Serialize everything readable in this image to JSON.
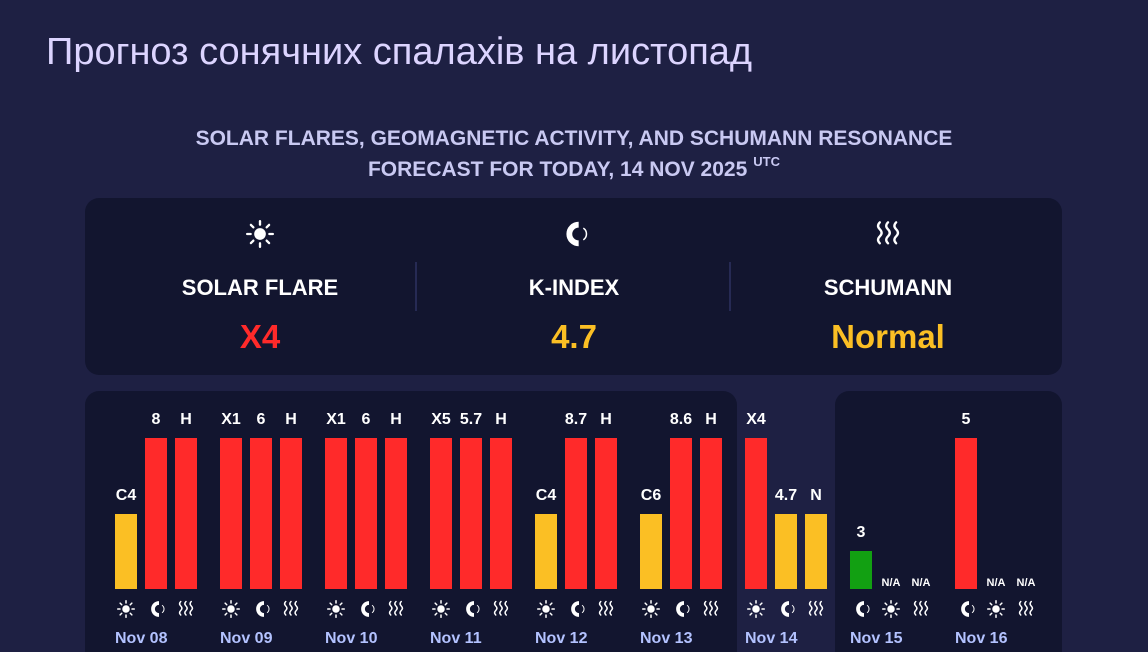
{
  "header": {
    "title": "Прогноз сонячних спалахів на листопад"
  },
  "forecast": {
    "heading": "SOLAR FLARES, GEOMAGNETIC ACTIVITY, AND SCHUMANN RESONANCE",
    "heading_line2": "FORECAST FOR TODAY, 14 NOV 2025",
    "heading_sup": "UTC",
    "items": [
      {
        "icon": "sun",
        "label": "SOLAR FLARE",
        "value": "X4",
        "color": "#ff2a2a"
      },
      {
        "icon": "magnet",
        "label": "K-INDEX",
        "value": "4.7",
        "color": "#fbbf24"
      },
      {
        "icon": "waves",
        "label": "SCHUMANN",
        "value": "Normal",
        "color": "#fbbf24"
      }
    ]
  },
  "days": [
    {
      "date": "Nov 08",
      "bars": [
        {
          "label": "C4",
          "color": "#fbbf24",
          "icon": "sun"
        },
        {
          "label": "8",
          "color": "#ff2a2a",
          "icon": "magnet"
        },
        {
          "label": "H",
          "color": "#ff2a2a",
          "icon": "waves"
        }
      ]
    },
    {
      "date": "Nov 09",
      "bars": [
        {
          "label": "X1",
          "color": "#ff2a2a",
          "icon": "sun"
        },
        {
          "label": "6",
          "color": "#ff2a2a",
          "icon": "magnet"
        },
        {
          "label": "H",
          "color": "#ff2a2a",
          "icon": "waves"
        }
      ]
    },
    {
      "date": "Nov 10",
      "bars": [
        {
          "label": "X1",
          "color": "#ff2a2a",
          "icon": "sun"
        },
        {
          "label": "6",
          "color": "#ff2a2a",
          "icon": "magnet"
        },
        {
          "label": "H",
          "color": "#ff2a2a",
          "icon": "waves"
        }
      ]
    },
    {
      "date": "Nov 11",
      "bars": [
        {
          "label": "X5",
          "color": "#ff2a2a",
          "icon": "sun"
        },
        {
          "label": "5.7",
          "color": "#ff2a2a",
          "icon": "magnet"
        },
        {
          "label": "H",
          "color": "#ff2a2a",
          "icon": "waves"
        }
      ]
    },
    {
      "date": "Nov 12",
      "bars": [
        {
          "label": "C4",
          "color": "#fbbf24",
          "icon": "sun"
        },
        {
          "label": "8.7",
          "color": "#ff2a2a",
          "icon": "magnet"
        },
        {
          "label": "H",
          "color": "#ff2a2a",
          "icon": "waves"
        }
      ]
    },
    {
      "date": "Nov 13",
      "bars": [
        {
          "label": "C6",
          "color": "#fbbf24",
          "icon": "sun"
        },
        {
          "label": "8.6",
          "color": "#ff2a2a",
          "icon": "magnet"
        },
        {
          "label": "H",
          "color": "#ff2a2a",
          "icon": "waves"
        }
      ]
    },
    {
      "date": "Nov 14",
      "highlight": true,
      "bars": [
        {
          "label": "X4",
          "color": "#ff2a2a",
          "icon": "sun"
        },
        {
          "label": "4.7",
          "color": "#fbbf24",
          "icon": "magnet"
        },
        {
          "label": "N",
          "color": "#fbbf24",
          "icon": "waves"
        }
      ]
    },
    {
      "date": "Nov 15",
      "bars": [
        {
          "label": "3",
          "color": "#12a012",
          "icon": "magnet"
        },
        {
          "label": "N/A",
          "color": null,
          "icon": "sun"
        },
        {
          "label": "N/A",
          "color": null,
          "icon": "waves"
        }
      ]
    },
    {
      "date": "Nov 16",
      "bars": [
        {
          "label": "5",
          "color": "#ff2a2a",
          "icon": "magnet"
        },
        {
          "label": "N/A",
          "color": null,
          "icon": "sun"
        },
        {
          "label": "N/A",
          "color": null,
          "icon": "waves"
        }
      ]
    }
  ]
}
